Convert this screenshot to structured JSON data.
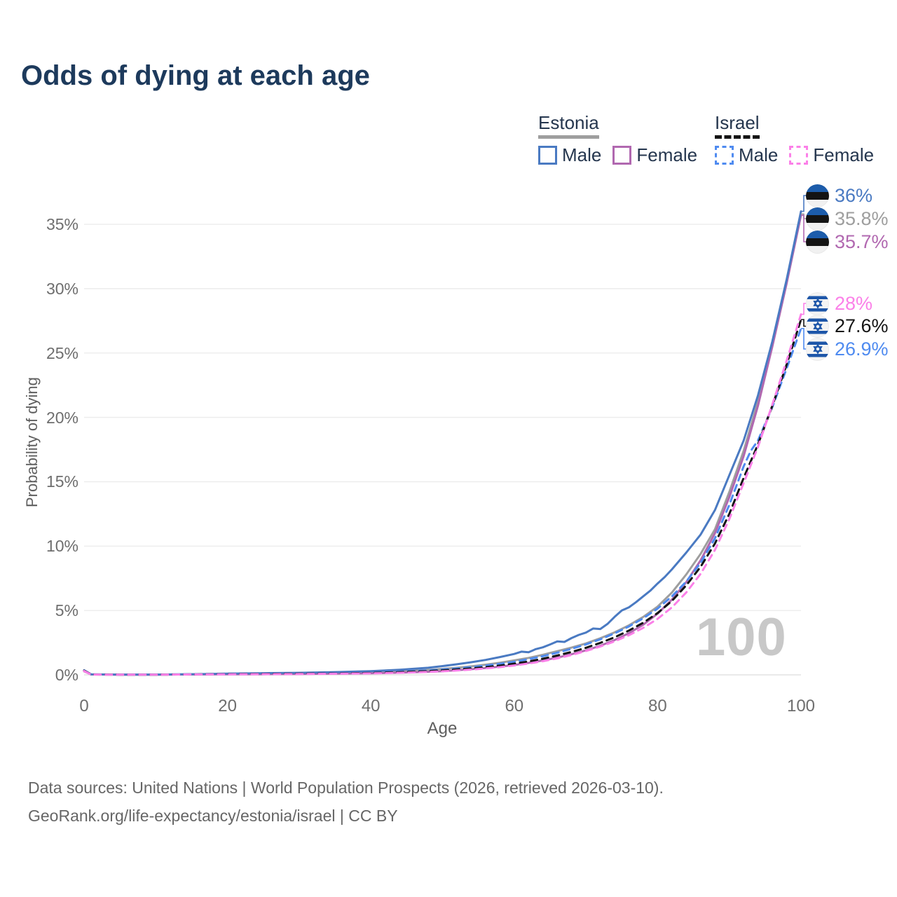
{
  "title": "Odds of dying at each age",
  "watermark": "100",
  "legend": {
    "groups": [
      {
        "name": "Estonia",
        "line_style": "solid",
        "underline_color": "#9e9e9e",
        "items": [
          {
            "label": "Male",
            "color": "#4a7ac2"
          },
          {
            "label": "Female",
            "color": "#b168b0"
          }
        ]
      },
      {
        "name": "Israel",
        "line_style": "dashed",
        "underline_color": "#141414",
        "items": [
          {
            "label": "Male",
            "color": "#4f8bf0"
          },
          {
            "label": "Female",
            "color": "#fb80e8"
          }
        ]
      }
    ]
  },
  "footer": {
    "line1": "Data sources: United Nations | World Population Prospects (2026, retrieved 2026-03-10).",
    "line2": "GeoRank.org/life-expectancy/estonia/israel | CC BY"
  },
  "right_labels": [
    {
      "group": "estonia",
      "flag": "estonia",
      "value": "36%",
      "pct": 36.0,
      "color": "#4a7ac2"
    },
    {
      "group": "estonia",
      "flag": "estonia",
      "value": "35.8%",
      "pct": 35.8,
      "color": "#9e9e9e"
    },
    {
      "group": "estonia",
      "flag": "estonia",
      "value": "35.7%",
      "pct": 35.7,
      "color": "#b168b0"
    },
    {
      "group": "israel",
      "flag": "israel",
      "value": "28%",
      "pct": 28.0,
      "color": "#fb80e8"
    },
    {
      "group": "israel",
      "flag": "israel",
      "value": "27.6%",
      "pct": 27.6,
      "color": "#141414"
    },
    {
      "group": "israel",
      "flag": "israel",
      "value": "26.9%",
      "pct": 26.9,
      "color": "#4f8bf0"
    }
  ],
  "chart_data": {
    "type": "line",
    "title": "Odds of dying at each age",
    "xlabel": "Age",
    "ylabel": "Probability of dying",
    "xlim": [
      0,
      100
    ],
    "ylim": [
      0,
      37
    ],
    "x_ticks": [
      0,
      20,
      40,
      60,
      80,
      100
    ],
    "y_ticks": [
      {
        "value": 0,
        "label": "0%"
      },
      {
        "value": 5,
        "label": "5%"
      },
      {
        "value": 10,
        "label": "10%"
      },
      {
        "value": 15,
        "label": "15%"
      },
      {
        "value": 20,
        "label": "20%"
      },
      {
        "value": 25,
        "label": "25%"
      },
      {
        "value": 30,
        "label": "30%"
      },
      {
        "value": 35,
        "label": "35%"
      }
    ],
    "grid": true,
    "legend_position": "top-right",
    "series": [
      {
        "id": "estonia-total",
        "name": "Estonia (both sexes)",
        "color": "#9e9e9e",
        "dash": false,
        "points": [
          [
            0,
            0.3
          ],
          [
            1,
            0.03
          ],
          [
            5,
            0.015
          ],
          [
            10,
            0.015
          ],
          [
            15,
            0.04
          ],
          [
            20,
            0.07
          ],
          [
            25,
            0.09
          ],
          [
            30,
            0.11
          ],
          [
            35,
            0.14
          ],
          [
            40,
            0.19
          ],
          [
            44,
            0.27
          ],
          [
            48,
            0.38
          ],
          [
            50,
            0.46
          ],
          [
            52,
            0.55
          ],
          [
            54,
            0.66
          ],
          [
            56,
            0.79
          ],
          [
            58,
            0.94
          ],
          [
            60,
            1.12
          ],
          [
            62,
            1.32
          ],
          [
            64,
            1.56
          ],
          [
            66,
            1.84
          ],
          [
            68,
            2.12
          ],
          [
            70,
            2.44
          ],
          [
            72,
            2.84
          ],
          [
            74,
            3.3
          ],
          [
            76,
            3.85
          ],
          [
            78,
            4.5
          ],
          [
            80,
            5.3
          ],
          [
            82,
            6.4
          ],
          [
            84,
            7.8
          ],
          [
            86,
            9.4
          ],
          [
            88,
            11.3
          ],
          [
            90,
            14.2
          ],
          [
            92,
            17.4
          ],
          [
            94,
            21.2
          ],
          [
            96,
            25.7
          ],
          [
            98,
            30.6
          ],
          [
            100,
            35.8
          ]
        ]
      },
      {
        "id": "estonia-female",
        "name": "Estonia Female",
        "color": "#b168b0",
        "dash": false,
        "points": [
          [
            0,
            0.28
          ],
          [
            1,
            0.03
          ],
          [
            5,
            0.012
          ],
          [
            10,
            0.012
          ],
          [
            15,
            0.03
          ],
          [
            20,
            0.04
          ],
          [
            25,
            0.05
          ],
          [
            30,
            0.07
          ],
          [
            35,
            0.09
          ],
          [
            40,
            0.12
          ],
          [
            44,
            0.17
          ],
          [
            48,
            0.24
          ],
          [
            50,
            0.29
          ],
          [
            52,
            0.36
          ],
          [
            54,
            0.44
          ],
          [
            56,
            0.53
          ],
          [
            58,
            0.64
          ],
          [
            60,
            0.77
          ],
          [
            62,
            0.93
          ],
          [
            64,
            1.12
          ],
          [
            66,
            1.34
          ],
          [
            68,
            1.6
          ],
          [
            70,
            1.9
          ],
          [
            72,
            2.26
          ],
          [
            74,
            2.7
          ],
          [
            76,
            3.24
          ],
          [
            78,
            3.9
          ],
          [
            80,
            4.75
          ],
          [
            82,
            5.85
          ],
          [
            84,
            7.2
          ],
          [
            86,
            8.9
          ],
          [
            88,
            11.0
          ],
          [
            90,
            13.8
          ],
          [
            92,
            17.0
          ],
          [
            94,
            20.9
          ],
          [
            96,
            25.5
          ],
          [
            98,
            30.4
          ],
          [
            100,
            35.7
          ]
        ]
      },
      {
        "id": "estonia-male",
        "name": "Estonia Male",
        "color": "#4a7ac2",
        "dash": false,
        "points": [
          [
            0,
            0.32
          ],
          [
            1,
            0.04
          ],
          [
            5,
            0.02
          ],
          [
            10,
            0.02
          ],
          [
            15,
            0.05
          ],
          [
            20,
            0.1
          ],
          [
            25,
            0.13
          ],
          [
            30,
            0.16
          ],
          [
            35,
            0.21
          ],
          [
            40,
            0.29
          ],
          [
            44,
            0.4
          ],
          [
            48,
            0.55
          ],
          [
            50,
            0.68
          ],
          [
            52,
            0.82
          ],
          [
            54,
            0.98
          ],
          [
            56,
            1.16
          ],
          [
            58,
            1.38
          ],
          [
            60,
            1.62
          ],
          [
            61,
            1.8
          ],
          [
            62,
            1.76
          ],
          [
            63,
            2.0
          ],
          [
            64,
            2.14
          ],
          [
            65,
            2.36
          ],
          [
            66,
            2.6
          ],
          [
            67,
            2.56
          ],
          [
            68,
            2.86
          ],
          [
            69,
            3.1
          ],
          [
            70,
            3.28
          ],
          [
            71,
            3.6
          ],
          [
            72,
            3.56
          ],
          [
            73,
            3.95
          ],
          [
            74,
            4.5
          ],
          [
            75,
            5.0
          ],
          [
            76,
            5.25
          ],
          [
            77,
            5.65
          ],
          [
            78,
            6.1
          ],
          [
            79,
            6.55
          ],
          [
            80,
            7.1
          ],
          [
            81,
            7.6
          ],
          [
            82,
            8.2
          ],
          [
            84,
            9.5
          ],
          [
            86,
            10.9
          ],
          [
            88,
            12.8
          ],
          [
            90,
            15.5
          ],
          [
            92,
            18.2
          ],
          [
            94,
            21.7
          ],
          [
            96,
            25.9
          ],
          [
            98,
            30.7
          ],
          [
            100,
            36.0
          ]
        ]
      },
      {
        "id": "israel-male",
        "name": "Israel Male",
        "color": "#4f8bf0",
        "dash": true,
        "points": [
          [
            0,
            0.36
          ],
          [
            1,
            0.03
          ],
          [
            5,
            0.02
          ],
          [
            10,
            0.02
          ],
          [
            15,
            0.04
          ],
          [
            20,
            0.08
          ],
          [
            25,
            0.1
          ],
          [
            30,
            0.11
          ],
          [
            35,
            0.14
          ],
          [
            40,
            0.18
          ],
          [
            44,
            0.25
          ],
          [
            48,
            0.35
          ],
          [
            50,
            0.42
          ],
          [
            52,
            0.5
          ],
          [
            54,
            0.6
          ],
          [
            56,
            0.72
          ],
          [
            58,
            0.86
          ],
          [
            60,
            1.02
          ],
          [
            62,
            1.22
          ],
          [
            64,
            1.45
          ],
          [
            66,
            1.72
          ],
          [
            68,
            2.02
          ],
          [
            70,
            2.36
          ],
          [
            72,
            2.76
          ],
          [
            74,
            3.22
          ],
          [
            76,
            3.76
          ],
          [
            78,
            4.4
          ],
          [
            80,
            5.15
          ],
          [
            82,
            6.1
          ],
          [
            84,
            7.25
          ],
          [
            86,
            8.7
          ],
          [
            88,
            10.6
          ],
          [
            90,
            13.2
          ],
          [
            92,
            16.2
          ],
          [
            93,
            17.4
          ],
          [
            94,
            18.2
          ],
          [
            96,
            20.8
          ],
          [
            98,
            23.8
          ],
          [
            100,
            26.9
          ]
        ]
      },
      {
        "id": "israel-total",
        "name": "Israel (both sexes)",
        "color": "#141414",
        "dash": true,
        "points": [
          [
            0,
            0.33
          ],
          [
            1,
            0.025
          ],
          [
            5,
            0.015
          ],
          [
            10,
            0.015
          ],
          [
            15,
            0.035
          ],
          [
            20,
            0.06
          ],
          [
            25,
            0.075
          ],
          [
            30,
            0.09
          ],
          [
            35,
            0.11
          ],
          [
            40,
            0.15
          ],
          [
            44,
            0.21
          ],
          [
            48,
            0.29
          ],
          [
            50,
            0.35
          ],
          [
            52,
            0.42
          ],
          [
            54,
            0.5
          ],
          [
            56,
            0.6
          ],
          [
            58,
            0.72
          ],
          [
            60,
            0.87
          ],
          [
            62,
            1.04
          ],
          [
            64,
            1.25
          ],
          [
            66,
            1.5
          ],
          [
            68,
            1.78
          ],
          [
            70,
            2.1
          ],
          [
            72,
            2.48
          ],
          [
            74,
            2.92
          ],
          [
            76,
            3.44
          ],
          [
            78,
            4.05
          ],
          [
            80,
            4.8
          ],
          [
            82,
            5.75
          ],
          [
            84,
            6.95
          ],
          [
            86,
            8.4
          ],
          [
            88,
            10.2
          ],
          [
            90,
            12.5
          ],
          [
            92,
            15.3
          ],
          [
            94,
            17.9
          ],
          [
            96,
            20.9
          ],
          [
            98,
            24.1
          ],
          [
            100,
            27.6
          ]
        ]
      },
      {
        "id": "israel-female",
        "name": "Israel Female",
        "color": "#fb80e8",
        "dash": true,
        "points": [
          [
            0,
            0.3
          ],
          [
            1,
            0.02
          ],
          [
            5,
            0.012
          ],
          [
            10,
            0.012
          ],
          [
            15,
            0.03
          ],
          [
            20,
            0.045
          ],
          [
            25,
            0.055
          ],
          [
            30,
            0.065
          ],
          [
            35,
            0.085
          ],
          [
            40,
            0.115
          ],
          [
            44,
            0.16
          ],
          [
            48,
            0.23
          ],
          [
            50,
            0.28
          ],
          [
            52,
            0.34
          ],
          [
            54,
            0.41
          ],
          [
            56,
            0.5
          ],
          [
            58,
            0.6
          ],
          [
            60,
            0.73
          ],
          [
            62,
            0.88
          ],
          [
            64,
            1.06
          ],
          [
            66,
            1.28
          ],
          [
            68,
            1.54
          ],
          [
            70,
            1.85
          ],
          [
            72,
            2.2
          ],
          [
            74,
            2.6
          ],
          [
            76,
            3.08
          ],
          [
            78,
            3.65
          ],
          [
            80,
            4.35
          ],
          [
            82,
            5.25
          ],
          [
            84,
            6.4
          ],
          [
            86,
            7.85
          ],
          [
            88,
            9.7
          ],
          [
            90,
            12.1
          ],
          [
            92,
            14.9
          ],
          [
            94,
            17.7
          ],
          [
            96,
            21.0
          ],
          [
            98,
            24.4
          ],
          [
            100,
            28.0
          ]
        ]
      }
    ]
  }
}
